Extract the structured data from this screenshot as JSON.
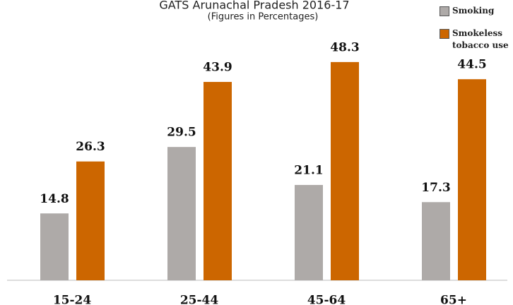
{
  "chart_data": {
    "type": "bar",
    "title": "GATS Arunachal Pradesh 2016-17",
    "subtitle": "(Figures in Percentages)",
    "categories": [
      "15-24",
      "25-44",
      "45-64",
      "65+"
    ],
    "series": [
      {
        "name": "Smoking",
        "color": "#aeaaa8",
        "values": [
          14.8,
          29.5,
          21.1,
          17.3
        ]
      },
      {
        "name": "Smokeless tobacco use",
        "color": "#cc6600",
        "values": [
          26.3,
          43.9,
          48.3,
          44.5
        ]
      }
    ],
    "ylim": [
      0,
      60
    ],
    "grid": false,
    "legend": "top-right"
  }
}
